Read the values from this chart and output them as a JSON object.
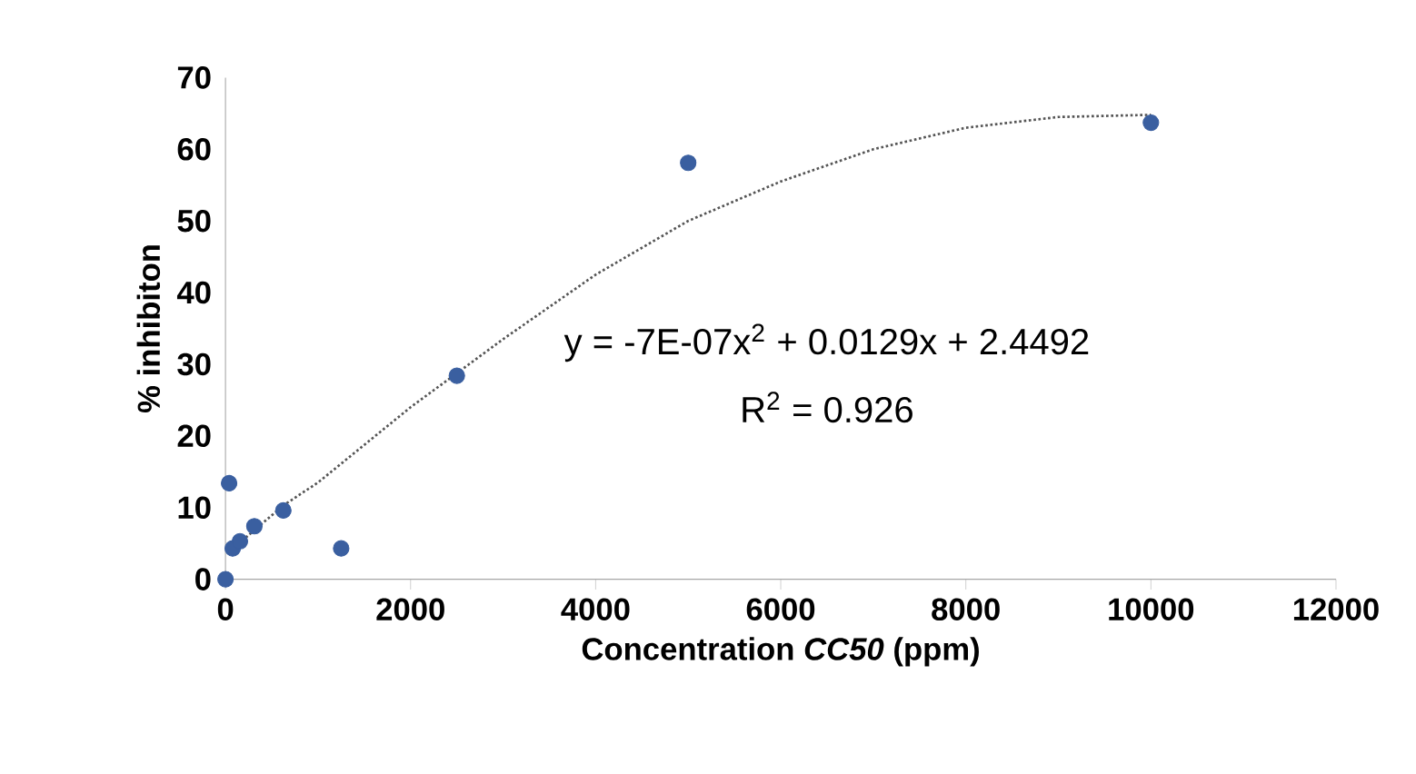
{
  "chart_data": {
    "type": "scatter",
    "xlabel": "Concentration *CC50* (ppm)",
    "ylabel": "% inhibiton",
    "xlim": [
      0,
      12000
    ],
    "xticks": [
      0,
      2000,
      4000,
      6000,
      8000,
      10000,
      12000
    ],
    "ylim": [
      0,
      70
    ],
    "yticks": [
      0,
      10,
      20,
      30,
      40,
      50,
      60,
      70
    ],
    "grid": false,
    "marker": "circle",
    "series": [
      {
        "color": "#3a5fa0",
        "x": [
          0,
          39,
          78,
          156,
          312,
          625,
          1250,
          2500,
          5000,
          10000
        ],
        "values": [
          0,
          13.4,
          4.3,
          5.3,
          7.4,
          9.6,
          4.3,
          28.4,
          58.1,
          63.7
        ]
      },
      {
        "type": "line",
        "color": "#555555",
        "line_style": "dotted",
        "marker": "none",
        "x": [
          100,
          625,
          1000,
          2000,
          3000,
          4000,
          5000,
          6000,
          7000,
          8000,
          9000,
          10000
        ],
        "values": [
          4.5,
          10.3,
          13.5,
          24,
          33.5,
          42.5,
          50,
          55.5,
          60,
          63,
          64.5,
          64.8
        ]
      }
    ],
    "annotations": [
      "y = -7E-07x$^{2}$ + 0.0129x + 2.4492",
      "R$^{2}$ = 0.926"
    ]
  }
}
